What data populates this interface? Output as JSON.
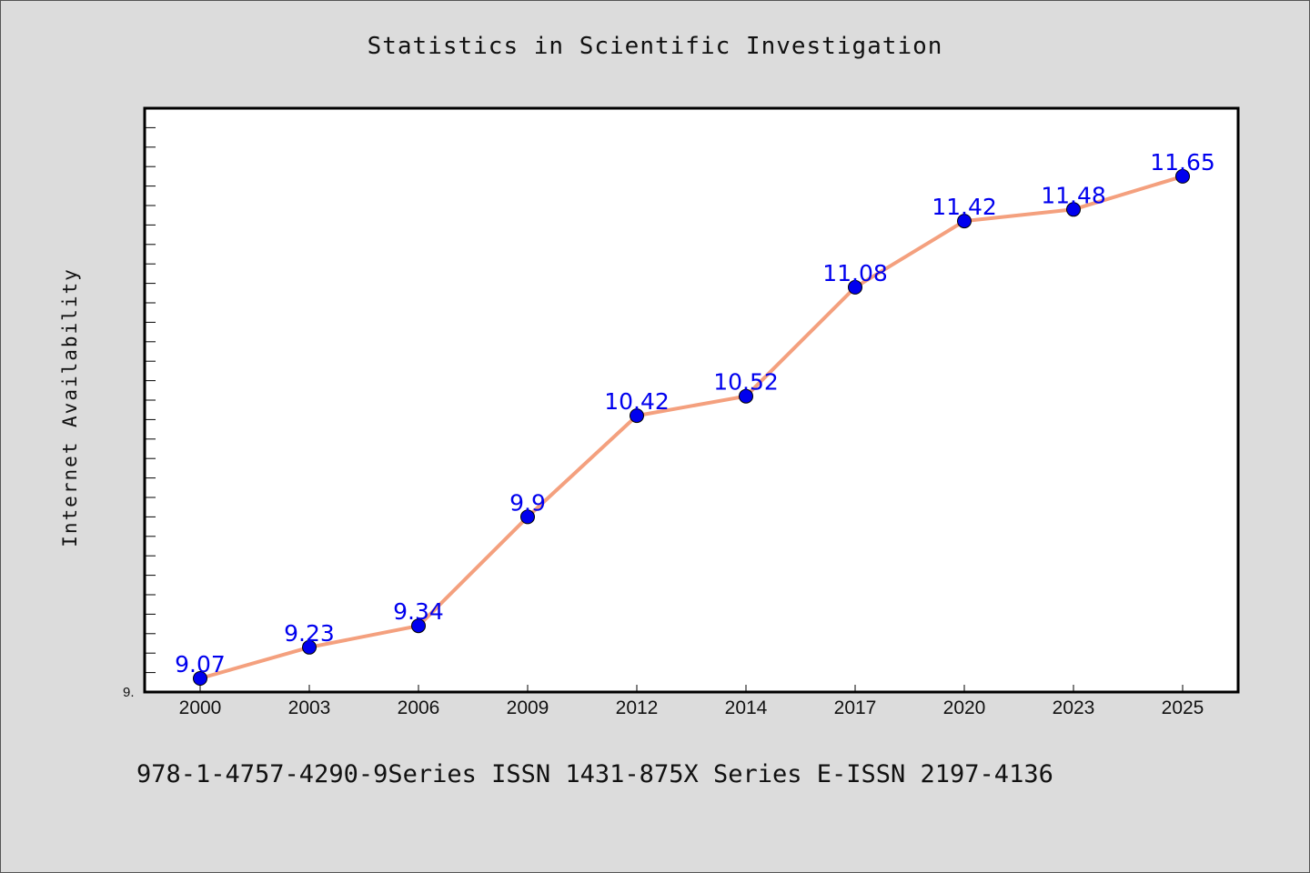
{
  "footer": {
    "text": "978-1-4757-4290-9Series ISSN 1431-875X Series E-ISSN 2197-4136"
  },
  "colors": {
    "line": "#f4a07e",
    "marker": "#0000ee",
    "label": "#0000ee"
  },
  "chart_data": {
    "type": "line",
    "title": "Statistics in Scientific Investigation",
    "xlabel": "",
    "ylabel": "Internet Availability",
    "y_tick_text": "9.",
    "categories": [
      "2000",
      "2003",
      "2006",
      "2009",
      "2012",
      "2014",
      "2017",
      "2020",
      "2023",
      "2025"
    ],
    "series": [
      {
        "values": [
          9.07,
          9.23,
          9.34,
          9.9,
          10.42,
          10.52,
          11.08,
          11.42,
          11.48,
          11.65
        ]
      }
    ],
    "data_labels": [
      "9.07",
      "9.23",
      "9.34",
      "9.9",
      "10.42",
      "10.52",
      "11.08",
      "11.42",
      "11.48",
      "11.65"
    ],
    "ylim": [
      9.0,
      12.0
    ],
    "grid": false,
    "legend": "none"
  }
}
